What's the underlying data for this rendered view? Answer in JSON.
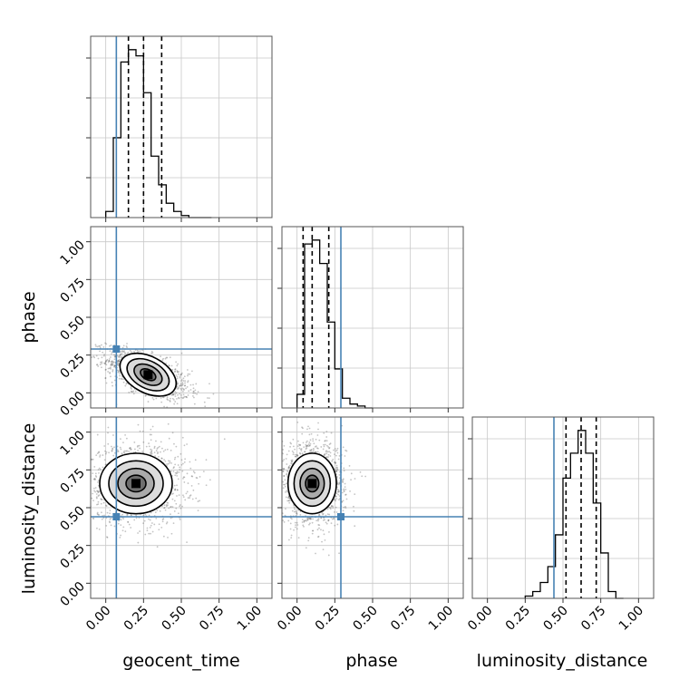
{
  "chart_data": {
    "type": "corner",
    "parameters": [
      "geocent_time",
      "phase",
      "luminosity_distance"
    ],
    "axis_label_text": {
      "x": [
        "geocent_time",
        "phase",
        "luminosity_distance"
      ],
      "y": [
        "",
        "phase",
        "luminosity_distance"
      ]
    },
    "limits": [
      [
        -0.1,
        1.1
      ],
      [
        -0.1,
        1.1
      ],
      [
        -0.1,
        1.1
      ]
    ],
    "ticks": [
      0.0,
      0.25,
      0.5,
      0.75,
      1.0
    ],
    "tick_labels": [
      "0.00",
      "0.25",
      "0.50",
      "0.75",
      "1.00"
    ],
    "grid": true,
    "truths": [
      0.07,
      0.29,
      0.44
    ],
    "truth_color": "#4682b4",
    "quantiles": [
      [
        0.15,
        0.25,
        0.37
      ],
      [
        0.04,
        0.1,
        0.21
      ],
      [
        0.52,
        0.62,
        0.72
      ]
    ],
    "histograms_1d": [
      {
        "parameter": "geocent_time",
        "bin_edges": [
          0.0,
          0.05,
          0.1,
          0.15,
          0.2,
          0.25,
          0.3,
          0.35,
          0.4,
          0.45,
          0.5,
          0.55,
          0.6,
          0.65,
          0.7
        ],
        "counts": [
          0.03,
          0.39,
          0.76,
          0.82,
          0.79,
          0.61,
          0.3,
          0.16,
          0.07,
          0.03,
          0.01,
          0.0,
          0.0,
          0.0
        ]
      },
      {
        "parameter": "phase",
        "bin_edges": [
          0.0,
          0.05,
          0.1,
          0.15,
          0.2,
          0.25,
          0.3,
          0.35,
          0.4,
          0.45,
          0.5
        ],
        "counts": [
          0.07,
          0.84,
          0.86,
          0.74,
          0.44,
          0.2,
          0.05,
          0.02,
          0.01,
          0.0
        ]
      },
      {
        "parameter": "luminosity_distance",
        "bin_edges": [
          0.25,
          0.3,
          0.35,
          0.4,
          0.45,
          0.5,
          0.55,
          0.6,
          0.65,
          0.7,
          0.75,
          0.8,
          0.85,
          0.9
        ],
        "counts": [
          0.01,
          0.03,
          0.07,
          0.14,
          0.28,
          0.53,
          0.64,
          0.74,
          0.64,
          0.42,
          0.2,
          0.03,
          0.0
        ]
      }
    ],
    "histograms_2d": [
      {
        "x": "geocent_time",
        "y": "phase",
        "peak": [
          0.28,
          0.12
        ],
        "sigma": [
          0.1,
          0.06
        ],
        "rho": -0.6
      },
      {
        "x": "geocent_time",
        "y": "luminosity_distance",
        "peak": [
          0.2,
          0.66
        ],
        "sigma": [
          0.12,
          0.1
        ],
        "rho": 0.0
      },
      {
        "x": "phase",
        "y": "luminosity_distance",
        "peak": [
          0.1,
          0.66
        ],
        "sigma": [
          0.08,
          0.1
        ],
        "rho": 0.0
      }
    ],
    "histogram_color": "#000000"
  }
}
